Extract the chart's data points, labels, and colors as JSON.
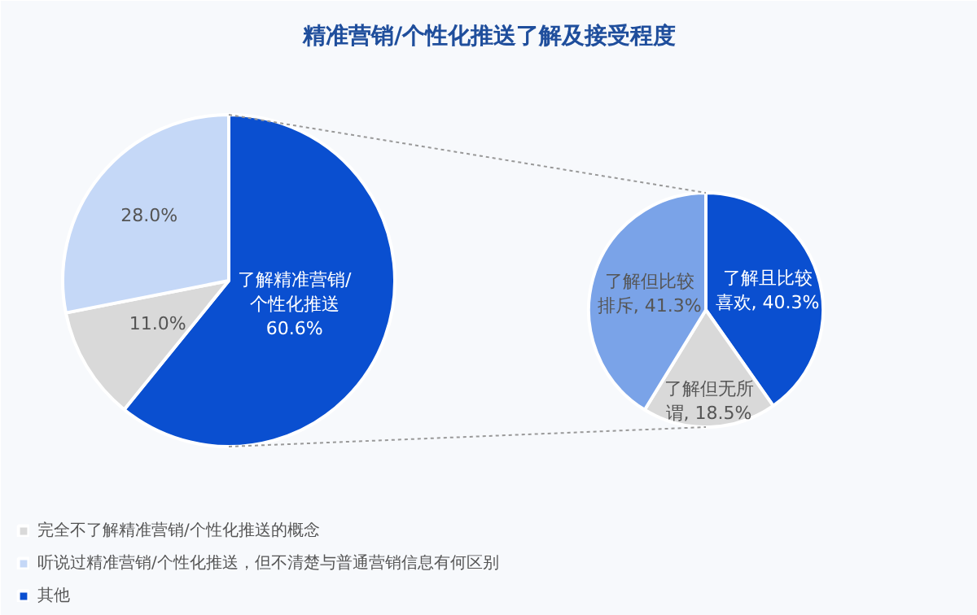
{
  "chart_data": [
    {
      "type": "pie",
      "title": "精准营销/个性化推送了解及接受程度",
      "categories": [
        "完全不了解精准营销/个性化推送的概念",
        "听说过精准营销/个性化推送，但不清楚与普通营销信息有何区别",
        "其他"
      ],
      "values": [
        11.0,
        28.0,
        60.6
      ],
      "colors": [
        "#d9d9d9",
        "#c5d8f7",
        "#0a4fd0"
      ],
      "value_labels": [
        "11.0%",
        "28.0%",
        "了解精准营销/\n个性化推送\n60.6%"
      ],
      "legend": "bottom"
    },
    {
      "type": "pie",
      "categories": [
        null,
        null,
        null
      ],
      "values": [
        40.3,
        18.5,
        41.3
      ],
      "colors": [
        "#0a4fd0",
        "#d9d9d9",
        "#7aa3e8"
      ],
      "value_labels": [
        "了解且比较喜欢, 40.3%",
        "了解但无所谓, 18.5%",
        "了解但比较排斥, 41.3%"
      ]
    }
  ]
}
